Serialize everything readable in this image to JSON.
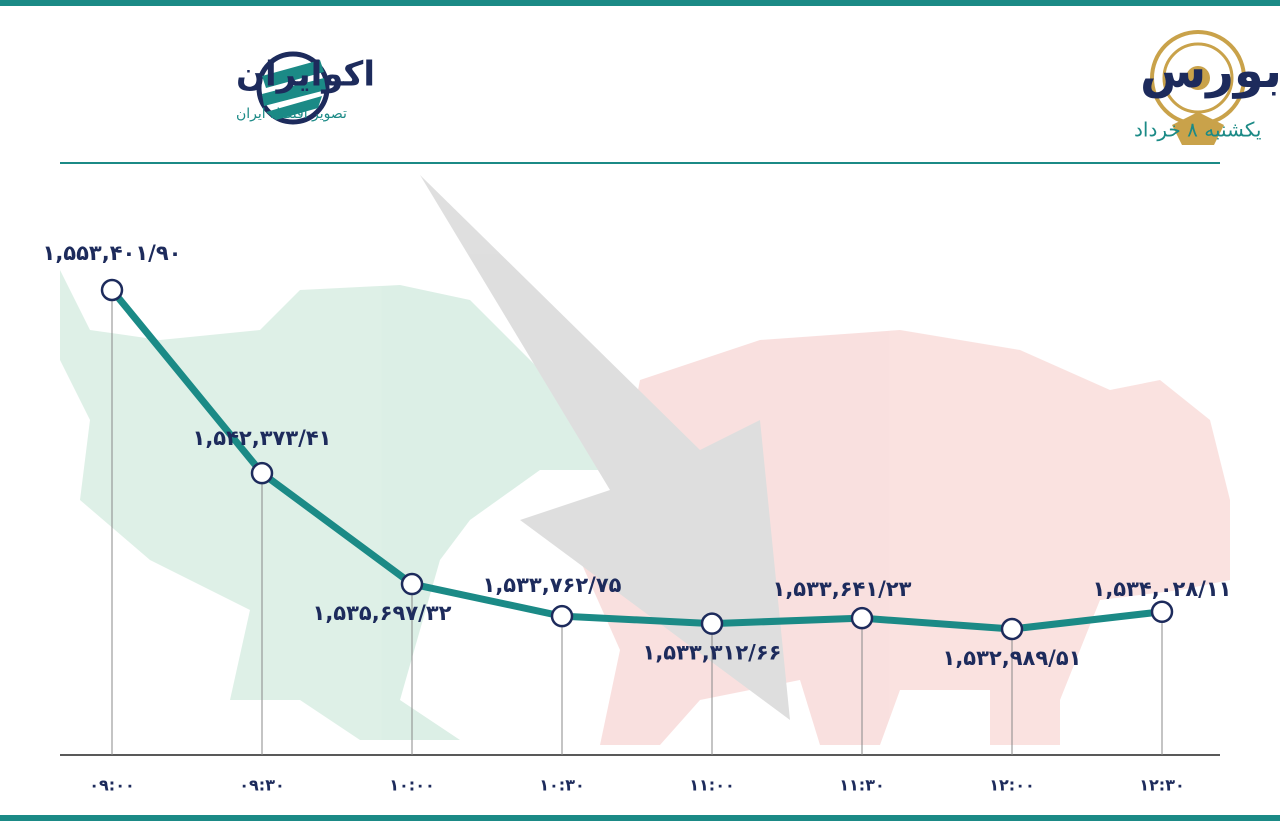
{
  "chart_data": {
    "type": "line",
    "title": "روند شاخص کل بورس",
    "subtitle": "یکشنبه ۸ خرداد",
    "categories": [
      "۰۹:۰۰",
      "۰۹:۳۰",
      "۱۰:۰۰",
      "۱۰:۳۰",
      "۱۱:۰۰",
      "۱۱:۳۰",
      "۱۲:۰۰",
      "۱۲:۳۰"
    ],
    "series": [
      {
        "color": "#1b8a86",
        "values": [
          1553401.9,
          1542373.41,
          1535697.32,
          1533762.75,
          1533312.66,
          1533641.23,
          1532989.51,
          1534028.11
        ],
        "value_labels": [
          "۱,۵۵۳,۴۰۱/۹۰",
          "۱,۵۴۲,۳۷۳/۴۱",
          "۱,۵۳۵,۶۹۷/۳۲",
          "۱,۵۳۳,۷۶۲/۷۵",
          "۱,۵۳۳,۳۱۲/۶۶",
          "۱,۵۳۳,۶۴۱/۲۳",
          "۱,۵۳۲,۹۸۹/۵۱",
          "۱,۵۳۴,۰۲۸/۱۱"
        ]
      }
    ]
  },
  "logo": {
    "name": "اکوایران",
    "tagline": "تصویر اقتصاد ایران"
  }
}
